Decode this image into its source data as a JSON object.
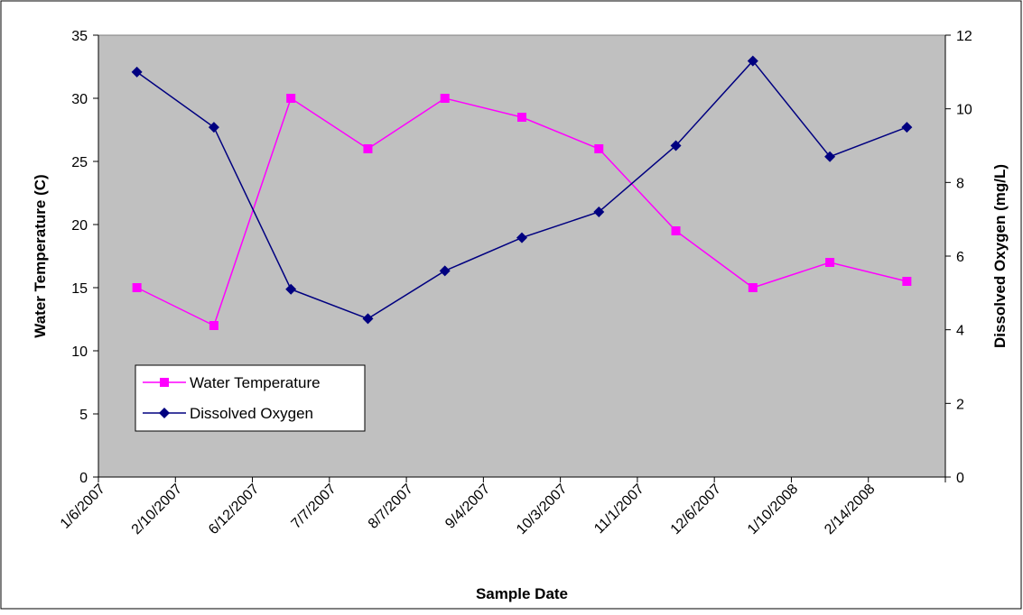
{
  "chart_data": {
    "type": "line",
    "title": "",
    "xlabel": "Sample Date",
    "ylabel": "Water Temperature (C)",
    "y2label": "Dissolved Oxygen (mg/L)",
    "categories": [
      "1/6/2007",
      "2/10/2007",
      "6/12/2007",
      "7/7/2007",
      "8/7/2007",
      "9/4/2007",
      "10/3/2007",
      "11/1/2007",
      "12/6/2007",
      "1/10/2008",
      "2/14/2008"
    ],
    "ylim": [
      0,
      35
    ],
    "y2lim": [
      0,
      12
    ],
    "yticks": [
      0,
      5,
      10,
      15,
      20,
      25,
      30,
      35
    ],
    "y2ticks": [
      0,
      2,
      4,
      6,
      8,
      10,
      12
    ],
    "grid": false,
    "legend_position": "lower-left",
    "series": [
      {
        "name": "Water Temperature",
        "axis": "left",
        "color": "#ff00ff",
        "marker": "square",
        "values": [
          15,
          12,
          30,
          26,
          30,
          28.5,
          26,
          19.5,
          15,
          17,
          15.5
        ]
      },
      {
        "name": "Dissolved Oxygen",
        "axis": "right",
        "color": "#000080",
        "marker": "diamond",
        "values": [
          11,
          9.5,
          5.1,
          4.3,
          5.6,
          6.5,
          7.2,
          9.0,
          11.3,
          8.7,
          9.5
        ]
      }
    ],
    "plot_background": "#c0c0c0"
  }
}
